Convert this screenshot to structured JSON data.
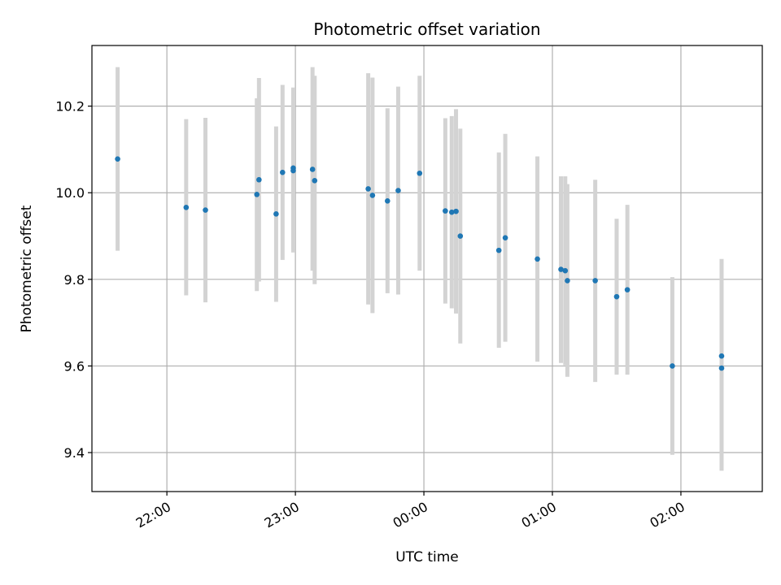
{
  "chart_data": {
    "type": "scatter",
    "title": "Photometric offset variation",
    "xlabel": "UTC time",
    "ylabel": "Photometric offset",
    "x_is_time": true,
    "x_range": [
      "21:25",
      "02:38"
    ],
    "ylim": [
      9.31,
      10.34
    ],
    "x_ticks": [
      "22:00",
      "23:00",
      "00:00",
      "01:00",
      "02:00"
    ],
    "y_ticks": [
      9.4,
      9.6,
      9.8,
      10.0,
      10.2
    ],
    "y_tick_labels": [
      "9.4",
      "9.6",
      "9.8",
      "10.0",
      "10.2"
    ],
    "grid": true,
    "marker_color": "#1f77b4",
    "errorbar_color": "#d3d3d3",
    "points": [
      {
        "t": "21:37",
        "y": 10.078,
        "lo": 9.866,
        "hi": 10.29
      },
      {
        "t": "22:09",
        "y": 9.966,
        "lo": 9.763,
        "hi": 10.17
      },
      {
        "t": "22:18",
        "y": 9.96,
        "lo": 9.747,
        "hi": 10.173
      },
      {
        "t": "22:42",
        "y": 9.996,
        "lo": 9.773,
        "hi": 10.218
      },
      {
        "t": "22:43",
        "y": 10.03,
        "lo": 9.795,
        "hi": 10.265
      },
      {
        "t": "22:51",
        "y": 9.951,
        "lo": 9.748,
        "hi": 10.153
      },
      {
        "t": "22:54",
        "y": 10.047,
        "lo": 9.845,
        "hi": 10.249
      },
      {
        "t": "22:59",
        "y": 10.057,
        "lo": 9.87,
        "hi": 10.243
      },
      {
        "t": "22:59",
        "y": 10.051,
        "lo": 9.862,
        "hi": 10.24
      },
      {
        "t": "23:08",
        "y": 10.054,
        "lo": 9.82,
        "hi": 10.29
      },
      {
        "t": "23:09",
        "y": 10.028,
        "lo": 9.789,
        "hi": 10.27
      },
      {
        "t": "23:34",
        "y": 10.009,
        "lo": 9.742,
        "hi": 10.276
      },
      {
        "t": "23:36",
        "y": 9.994,
        "lo": 9.722,
        "hi": 10.266
      },
      {
        "t": "23:43",
        "y": 9.981,
        "lo": 9.768,
        "hi": 10.195
      },
      {
        "t": "23:48",
        "y": 10.005,
        "lo": 9.765,
        "hi": 10.245
      },
      {
        "t": "23:58",
        "y": 10.045,
        "lo": 9.82,
        "hi": 10.27
      },
      {
        "t": "00:10",
        "y": 9.958,
        "lo": 9.744,
        "hi": 10.172
      },
      {
        "t": "00:13",
        "y": 9.955,
        "lo": 9.733,
        "hi": 10.177
      },
      {
        "t": "00:15",
        "y": 9.957,
        "lo": 9.721,
        "hi": 10.193
      },
      {
        "t": "00:17",
        "y": 9.9,
        "lo": 9.652,
        "hi": 10.148
      },
      {
        "t": "00:35",
        "y": 9.867,
        "lo": 9.642,
        "hi": 10.093
      },
      {
        "t": "00:38",
        "y": 9.896,
        "lo": 9.656,
        "hi": 10.136
      },
      {
        "t": "00:53",
        "y": 9.847,
        "lo": 9.61,
        "hi": 10.084
      },
      {
        "t": "01:04",
        "y": 9.823,
        "lo": 9.607,
        "hi": 10.038
      },
      {
        "t": "01:06",
        "y": 9.82,
        "lo": 9.602,
        "hi": 10.038
      },
      {
        "t": "01:07",
        "y": 9.797,
        "lo": 9.575,
        "hi": 10.02
      },
      {
        "t": "01:20",
        "y": 9.797,
        "lo": 9.563,
        "hi": 10.03
      },
      {
        "t": "01:30",
        "y": 9.76,
        "lo": 9.58,
        "hi": 9.94
      },
      {
        "t": "01:35",
        "y": 9.776,
        "lo": 9.58,
        "hi": 9.972
      },
      {
        "t": "01:56",
        "y": 9.6,
        "lo": 9.395,
        "hi": 9.805
      },
      {
        "t": "02:19",
        "y": 9.623,
        "lo": 9.6,
        "hi": 9.847
      },
      {
        "t": "02:19",
        "y": 9.595,
        "lo": 9.358,
        "hi": 9.596
      }
    ]
  }
}
